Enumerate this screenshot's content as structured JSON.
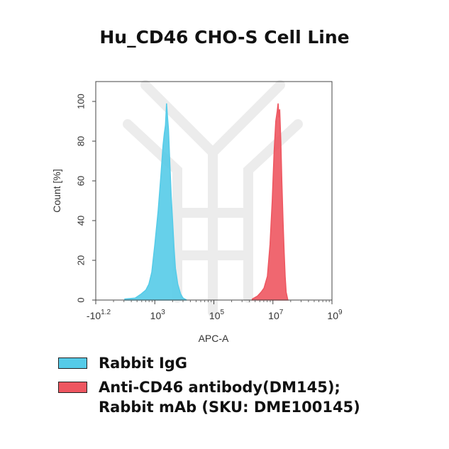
{
  "chart_data": {
    "type": "area",
    "title": "Hu_CD46 CHO-S Cell Line",
    "xlabel": "APC-A",
    "ylabel": "Count [%]",
    "x_scale": "log",
    "xlim": [
      -16,
      1000000000
    ],
    "ylim": [
      0,
      110
    ],
    "x_ticks": [
      {
        "value": -16,
        "label_base": "-10",
        "label_exp": "1.2"
      },
      {
        "value": 1000,
        "label_base": "10",
        "label_exp": "3"
      },
      {
        "value": 100000,
        "label_base": "10",
        "label_exp": "5"
      },
      {
        "value": 10000000,
        "label_base": "10",
        "label_exp": "7"
      },
      {
        "value": 1000000000,
        "label_base": "10",
        "label_exp": "9"
      }
    ],
    "y_ticks": [
      0,
      20,
      40,
      60,
      80,
      100
    ],
    "series": [
      {
        "name": "Rabbit IgG",
        "color": "#55cbe8",
        "x": [
          30,
          100,
          200,
          350,
          500,
          700,
          1000,
          1300,
          1600,
          1900,
          2100,
          2300,
          2500,
          2700,
          2900,
          3200,
          3600,
          4000,
          4500,
          5000,
          6000,
          7500,
          9000,
          12000
        ],
        "y": [
          0.5,
          1,
          3,
          5,
          8,
          14,
          28,
          45,
          62,
          78,
          84,
          88,
          99,
          92,
          86,
          70,
          52,
          40,
          26,
          16,
          8,
          3,
          1,
          0
        ]
      },
      {
        "name": "Anti-CD46 antibody(DM145);",
        "name_line2": "Rabbit mAb (SKU: DME100145)",
        "color": "#ee5660",
        "x": [
          2000000,
          3000000,
          4000000,
          5000000,
          6500000,
          8000000,
          9500000,
          11000000,
          12500000,
          14000000,
          15000000,
          16000000,
          17000000,
          18500000,
          20000000,
          22000000,
          24000000,
          26000000,
          28000000,
          32000000
        ],
        "y": [
          0.5,
          2,
          4,
          6,
          12,
          28,
          50,
          75,
          90,
          95,
          99,
          92,
          96,
          80,
          60,
          40,
          24,
          12,
          4,
          0
        ]
      }
    ]
  }
}
